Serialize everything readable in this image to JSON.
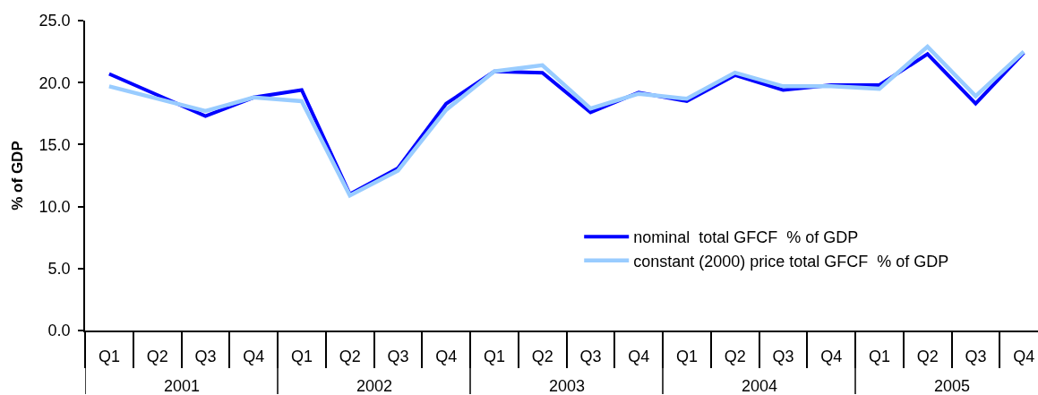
{
  "chart_data": {
    "type": "line",
    "ylabel": "% of GDP",
    "categories": [
      "Q1",
      "Q2",
      "Q3",
      "Q4",
      "Q1",
      "Q2",
      "Q3",
      "Q4",
      "Q1",
      "Q2",
      "Q3",
      "Q4",
      "Q1",
      "Q2",
      "Q3",
      "Q4",
      "Q1",
      "Q2",
      "Q3",
      "Q4"
    ],
    "annotations": [
      "2001",
      "2002",
      "2003",
      "2004",
      "2005"
    ],
    "series": [
      {
        "name": "nominal  total GFCF  % of GDP",
        "color": "#0000ff",
        "values": [
          20.7,
          19.0,
          17.3,
          18.8,
          19.4,
          11.0,
          13.1,
          18.3,
          20.9,
          20.8,
          17.6,
          19.2,
          18.5,
          20.6,
          19.4,
          19.8,
          19.8,
          22.3,
          18.3,
          22.4
        ]
      },
      {
        "name": "constant (2000) price total GFCF  % of GDP",
        "color": "#99ccff",
        "values": [
          19.7,
          18.7,
          17.7,
          18.8,
          18.5,
          10.9,
          12.9,
          17.8,
          20.9,
          21.4,
          17.9,
          19.1,
          18.7,
          20.8,
          19.7,
          19.7,
          19.5,
          22.9,
          18.9,
          22.5
        ]
      }
    ],
    "ylim": [
      0,
      25
    ],
    "yticks": [
      {
        "value": 0,
        "label": "0.0"
      },
      {
        "value": 5,
        "label": "5.0"
      },
      {
        "value": 10,
        "label": "10.0"
      },
      {
        "value": 15,
        "label": "15.0"
      },
      {
        "value": 20,
        "label": "20.0"
      },
      {
        "value": 25,
        "label": "25.0"
      }
    ],
    "legend": "bottom right"
  }
}
